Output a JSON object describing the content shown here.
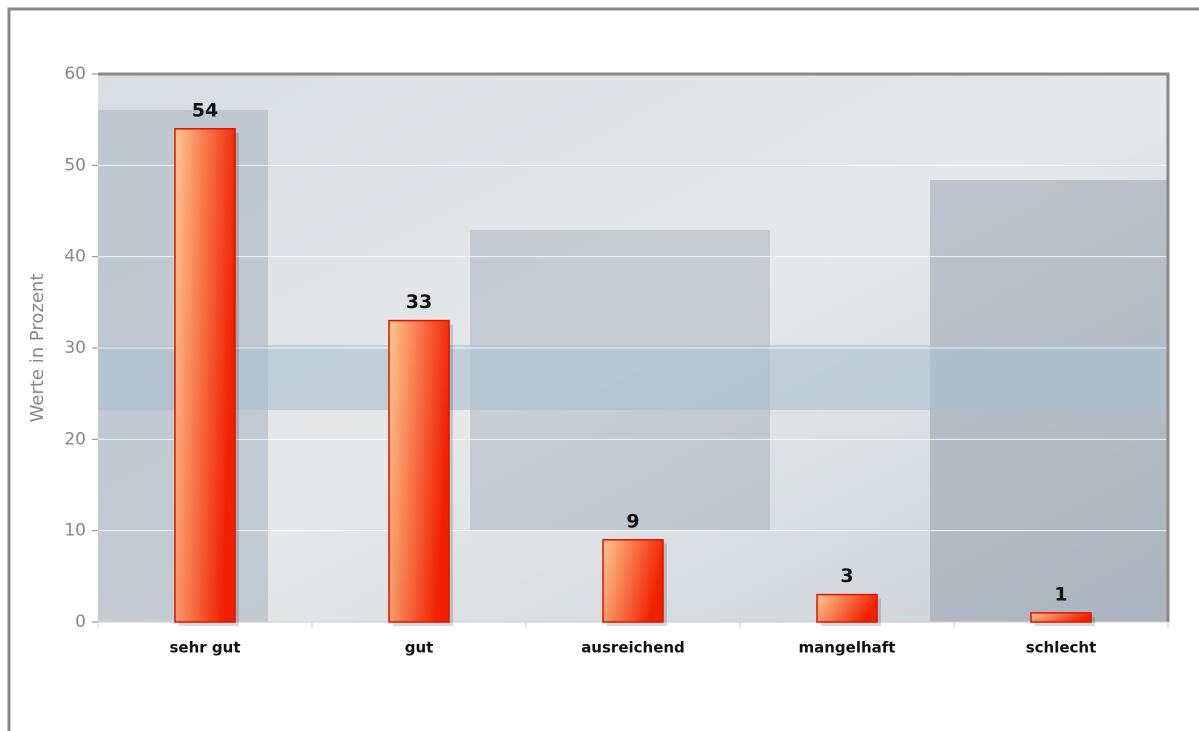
{
  "chart_data": {
    "type": "bar",
    "y_label": "Werte in Prozent",
    "categories": [
      "sehr gut",
      "gut",
      "ausreichend",
      "mangelhaft",
      "schlecht"
    ],
    "values": [
      54,
      33,
      9,
      3,
      1
    ],
    "ylim": [
      0,
      60
    ],
    "yticks": [
      0,
      10,
      20,
      30,
      40,
      50,
      60
    ],
    "grid": true,
    "color": [
      "#fdc890",
      "#f02000"
    ]
  }
}
